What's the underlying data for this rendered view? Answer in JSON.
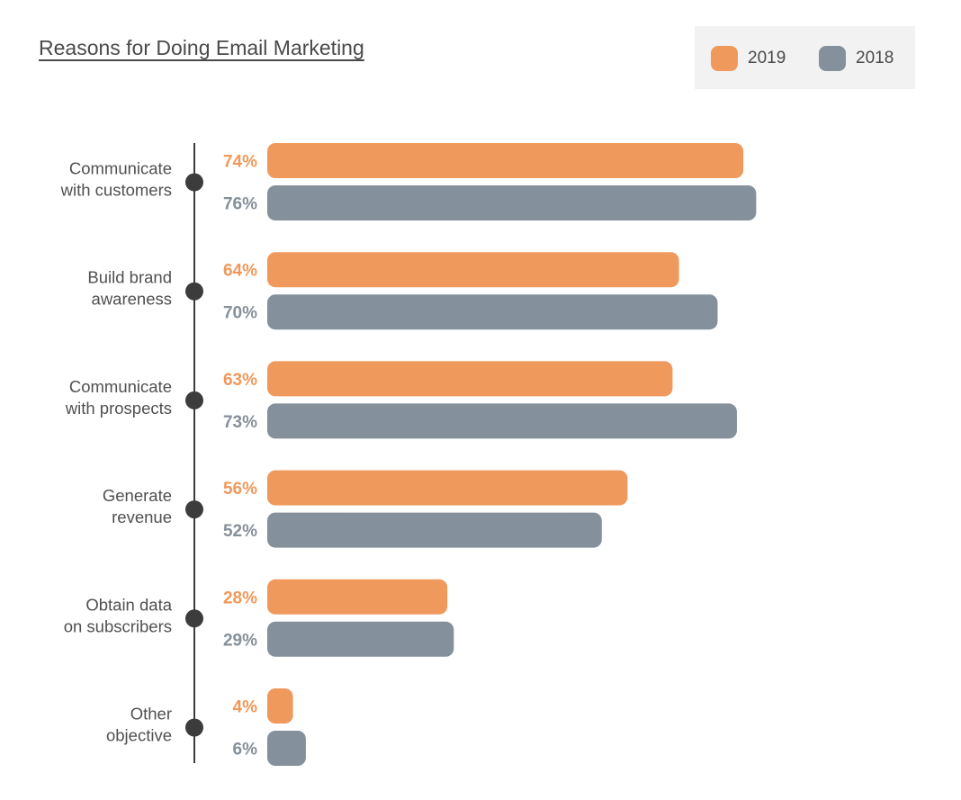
{
  "colors": {
    "s2019": "#f0995c",
    "s2018": "#84909b",
    "axis": "#3c3c3c",
    "text": "#505050"
  },
  "chart_data": {
    "type": "bar",
    "orientation": "horizontal",
    "title": "Reasons for Doing Email Marketing",
    "legend": "top-right",
    "grid": false,
    "xlim": [
      0,
      100
    ],
    "categories": [
      [
        "Communicate",
        "with customers"
      ],
      [
        "Build brand",
        "awareness"
      ],
      [
        "Communicate",
        "with prospects"
      ],
      [
        "Generate",
        "revenue"
      ],
      [
        "Obtain data",
        "on subscribers"
      ],
      [
        "Other",
        "objective"
      ]
    ],
    "series": [
      {
        "name": "2019",
        "values": [
          74,
          64,
          63,
          56,
          28,
          4
        ],
        "labels": [
          "74%",
          "64%",
          "63%",
          "56%",
          "28%",
          "4%"
        ]
      },
      {
        "name": "2018",
        "values": [
          76,
          70,
          73,
          52,
          29,
          6
        ],
        "labels": [
          "76%",
          "70%",
          "73%",
          "52%",
          "29%",
          "6%"
        ]
      }
    ]
  }
}
